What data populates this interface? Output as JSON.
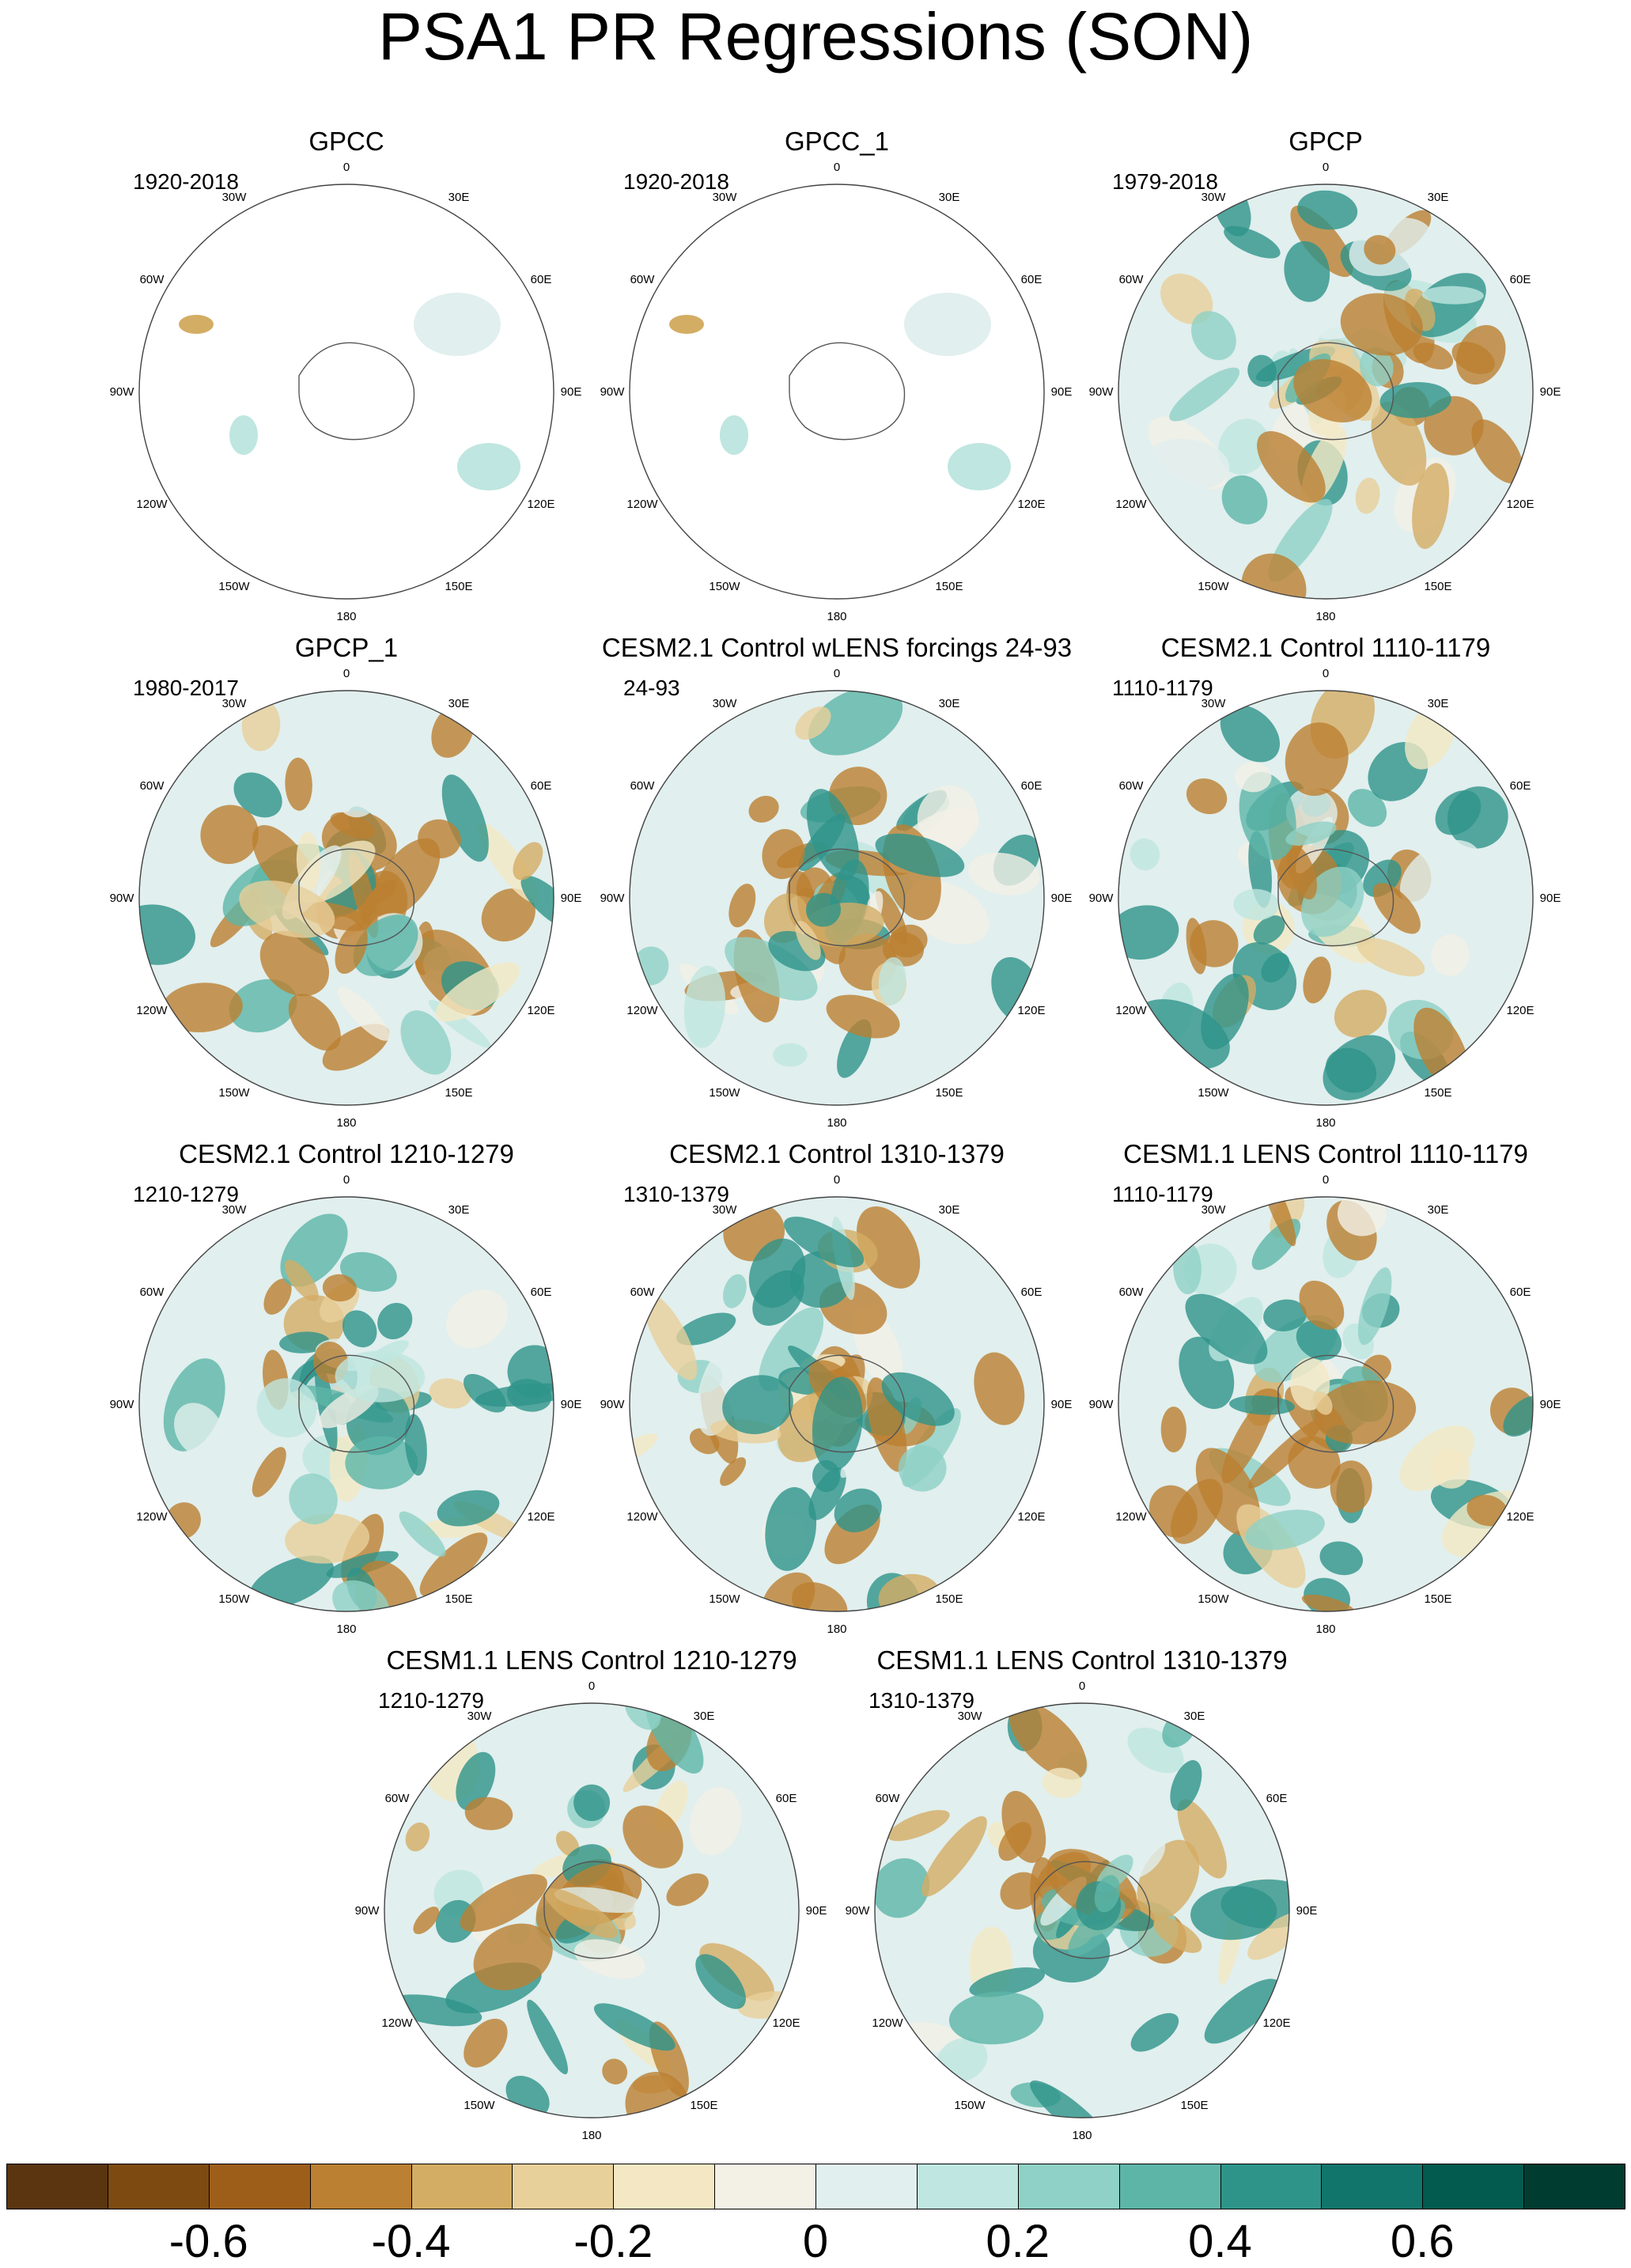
{
  "title": "PSA1 PR Regressions (SON)",
  "longitude_labels": [
    "0",
    "30E",
    "60E",
    "90E",
    "120E",
    "150E",
    "180",
    "150W",
    "120W",
    "90W",
    "60W",
    "30W"
  ],
  "panels": [
    {
      "title": "GPCC",
      "period": "1920-2018",
      "coverage": "land"
    },
    {
      "title": "GPCC_1",
      "period": "1920-2018",
      "coverage": "land"
    },
    {
      "title": "GPCP",
      "period": "1979-2018",
      "coverage": "full"
    },
    {
      "title": "GPCP_1",
      "period": "1980-2017",
      "coverage": "full"
    },
    {
      "title": "CESM2.1 Control wLENS forcings 24-93",
      "period": "24-93",
      "coverage": "full"
    },
    {
      "title": "CESM2.1 Control 1110-1179",
      "period": "1110-1179",
      "coverage": "full"
    },
    {
      "title": "CESM2.1 Control 1210-1279",
      "period": "1210-1279",
      "coverage": "full"
    },
    {
      "title": "CESM2.1 Control 1310-1379",
      "period": "1310-1379",
      "coverage": "full"
    },
    {
      "title": "CESM1.1 LENS Control 1110-1179",
      "period": "1110-1179",
      "coverage": "full"
    },
    {
      "title": "CESM1.1 LENS Control 1210-1279",
      "period": "1210-1279",
      "coverage": "full"
    },
    {
      "title": "CESM1.1 LENS Control 1310-1379",
      "period": "1310-1379",
      "coverage": "full"
    }
  ],
  "colorbar": {
    "colors": [
      "#5a3510",
      "#7d4a12",
      "#9d5e1a",
      "#bb8031",
      "#d4ad64",
      "#e8d09a",
      "#f4e8c4",
      "#f3f0e6",
      "#e1efee",
      "#bfe6e0",
      "#8fd1c6",
      "#5db5a8",
      "#2e948a",
      "#12756b",
      "#035a4e",
      "#003c30"
    ],
    "labels": [
      "-0.6",
      "-0.4",
      "-0.2",
      "0",
      "0.2",
      "0.4",
      "0.6"
    ],
    "label_values": [
      -0.6,
      -0.4,
      -0.2,
      0,
      0.2,
      0.4,
      0.6
    ],
    "min": -0.8,
    "max": 0.8
  }
}
